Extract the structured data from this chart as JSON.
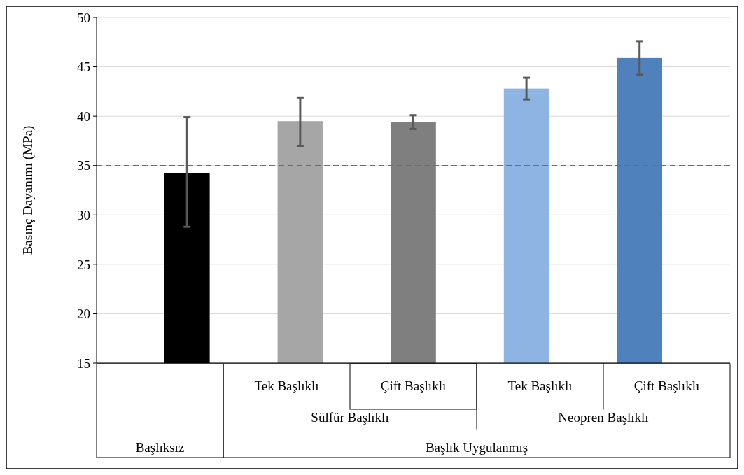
{
  "chart_data": {
    "type": "bar",
    "ylabel": "Basınç Dayanımı (MPa)",
    "categories": [
      null,
      "Tek Başlıklı",
      "Çift Başlıklı",
      "Tek Başlıklı",
      "Çift Başlıklı"
    ],
    "values": [
      34.2,
      39.5,
      39.4,
      42.8,
      45.9
    ],
    "colors": [
      "#000000",
      "#a6a6a6",
      "#7f7f7f",
      "#8eb4e3",
      "#4f81bd"
    ],
    "errors": [
      [
        28.8,
        39.9
      ],
      [
        37.0,
        41.9
      ],
      [
        38.7,
        40.1
      ],
      [
        41.7,
        43.9
      ],
      [
        44.2,
        47.6
      ]
    ],
    "ylim": [
      15,
      50
    ],
    "yticks": [
      15,
      20,
      25,
      30,
      35,
      40,
      45,
      50
    ],
    "grid": "y",
    "ref_lines": [
      {
        "axis": "y",
        "value": 35,
        "color": "#e03c3c",
        "line_style": "dashed"
      }
    ],
    "annotations": [
      "Sülfür Başlıklı",
      "Neopren Başlıklı",
      "Başlıksız",
      "Başlık Uygulanmış"
    ]
  }
}
